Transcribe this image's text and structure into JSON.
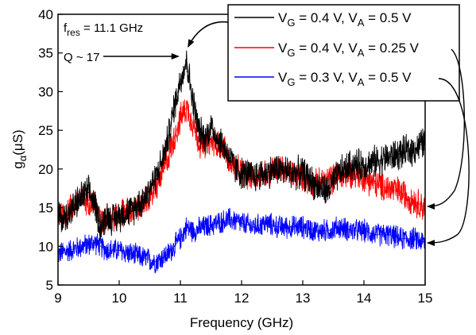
{
  "chart_data": {
    "type": "line",
    "xlabel": "Frequency (GHz)",
    "ylabel_main": "g",
    "ylabel_sub": "α",
    "ylabel_unit": "(μS)",
    "xlim": [
      9,
      15
    ],
    "ylim": [
      5,
      40
    ],
    "xticks": [
      9,
      10,
      11,
      12,
      13,
      14,
      15
    ],
    "yticks": [
      5,
      10,
      15,
      20,
      25,
      30,
      35,
      40
    ],
    "annotation": {
      "f_main": "f",
      "f_sub": "res",
      "f_value": " = 11.1 GHz",
      "q_text": "Q ~ 17",
      "peak_x": 11.1,
      "peak_y": 36
    },
    "series": [
      {
        "label": "V_G = 0.4 V, V_A = 0.5 V",
        "leg_parts": [
          "V",
          "G",
          " = 0.4 V, V",
          "A",
          " = 0.5 V"
        ],
        "color": "#000000",
        "noise": 2.4,
        "x": [
          9.0,
          9.1,
          9.2,
          9.3,
          9.4,
          9.5,
          9.6,
          9.7,
          9.8,
          9.9,
          10.0,
          10.1,
          10.2,
          10.3,
          10.4,
          10.5,
          10.6,
          10.7,
          10.8,
          10.9,
          11.0,
          11.1,
          11.2,
          11.3,
          11.4,
          11.5,
          11.6,
          11.7,
          11.8,
          11.9,
          12.0,
          12.2,
          12.4,
          12.6,
          12.8,
          13.0,
          13.2,
          13.4,
          13.6,
          13.8,
          14.0,
          14.2,
          14.4,
          14.6,
          14.8,
          15.0
        ],
        "y": [
          14,
          13.5,
          14.5,
          15.5,
          16.5,
          17,
          15.5,
          12.5,
          14,
          13.5,
          14,
          14.5,
          14.5,
          15.5,
          16,
          17.5,
          19,
          21,
          24,
          28,
          31.5,
          34,
          29,
          25,
          24,
          25.5,
          24,
          23,
          21.5,
          20,
          19.5,
          19,
          19.5,
          20,
          19.5,
          19.5,
          18,
          17,
          19.5,
          20.5,
          20.5,
          21,
          21.5,
          22,
          22.5,
          23.5
        ]
      },
      {
        "label": "V_G = 0.4 V, V_A = 0.25 V",
        "leg_parts": [
          "V",
          "G",
          " = 0.4 V, V",
          "A",
          " = 0.25 V"
        ],
        "color": "#ff0000",
        "noise": 2.2,
        "x": [
          9.0,
          9.1,
          9.2,
          9.3,
          9.4,
          9.5,
          9.6,
          9.7,
          9.8,
          9.9,
          10.0,
          10.1,
          10.2,
          10.3,
          10.4,
          10.5,
          10.6,
          10.7,
          10.8,
          10.9,
          11.0,
          11.1,
          11.2,
          11.3,
          11.4,
          11.5,
          11.6,
          11.7,
          11.8,
          11.9,
          12.0,
          12.2,
          12.4,
          12.6,
          12.8,
          13.0,
          13.2,
          13.4,
          13.6,
          13.8,
          14.0,
          14.2,
          14.4,
          14.6,
          14.8,
          15.0
        ],
        "y": [
          14.5,
          14,
          15,
          15.5,
          16,
          16,
          15.5,
          13,
          14,
          13.5,
          14,
          14.5,
          14.5,
          15,
          15.5,
          16.5,
          17.5,
          19.5,
          21.5,
          24,
          26.5,
          28,
          26,
          23.5,
          23,
          23.5,
          23.5,
          23,
          21,
          20,
          19.5,
          19,
          19.5,
          20,
          19.5,
          19,
          18,
          18.5,
          19,
          19.5,
          19,
          18,
          17.5,
          17,
          16,
          15
        ]
      },
      {
        "label": "V_G = 0.3 V, V_A = 0.5 V",
        "leg_parts": [
          "V",
          "G",
          " = 0.3 V, V",
          "A",
          " = 0.5 V"
        ],
        "color": "#0000ff",
        "noise": 1.7,
        "x": [
          9.0,
          9.2,
          9.4,
          9.6,
          9.8,
          10.0,
          10.2,
          10.4,
          10.6,
          10.8,
          10.9,
          11.0,
          11.1,
          11.2,
          11.4,
          11.6,
          11.8,
          12.0,
          12.2,
          12.4,
          12.6,
          12.8,
          13.0,
          13.2,
          13.4,
          13.6,
          13.8,
          14.0,
          14.2,
          14.4,
          14.6,
          14.8,
          15.0
        ],
        "y": [
          9,
          9.5,
          10,
          10.5,
          9.5,
          9.5,
          9,
          8.5,
          8,
          9,
          10,
          11,
          12.5,
          12,
          12.5,
          13,
          13.5,
          13,
          12.5,
          13,
          12.5,
          12.5,
          12.5,
          12,
          12,
          12.5,
          12,
          12,
          11.5,
          11.5,
          11,
          11,
          10.5
        ]
      }
    ]
  }
}
